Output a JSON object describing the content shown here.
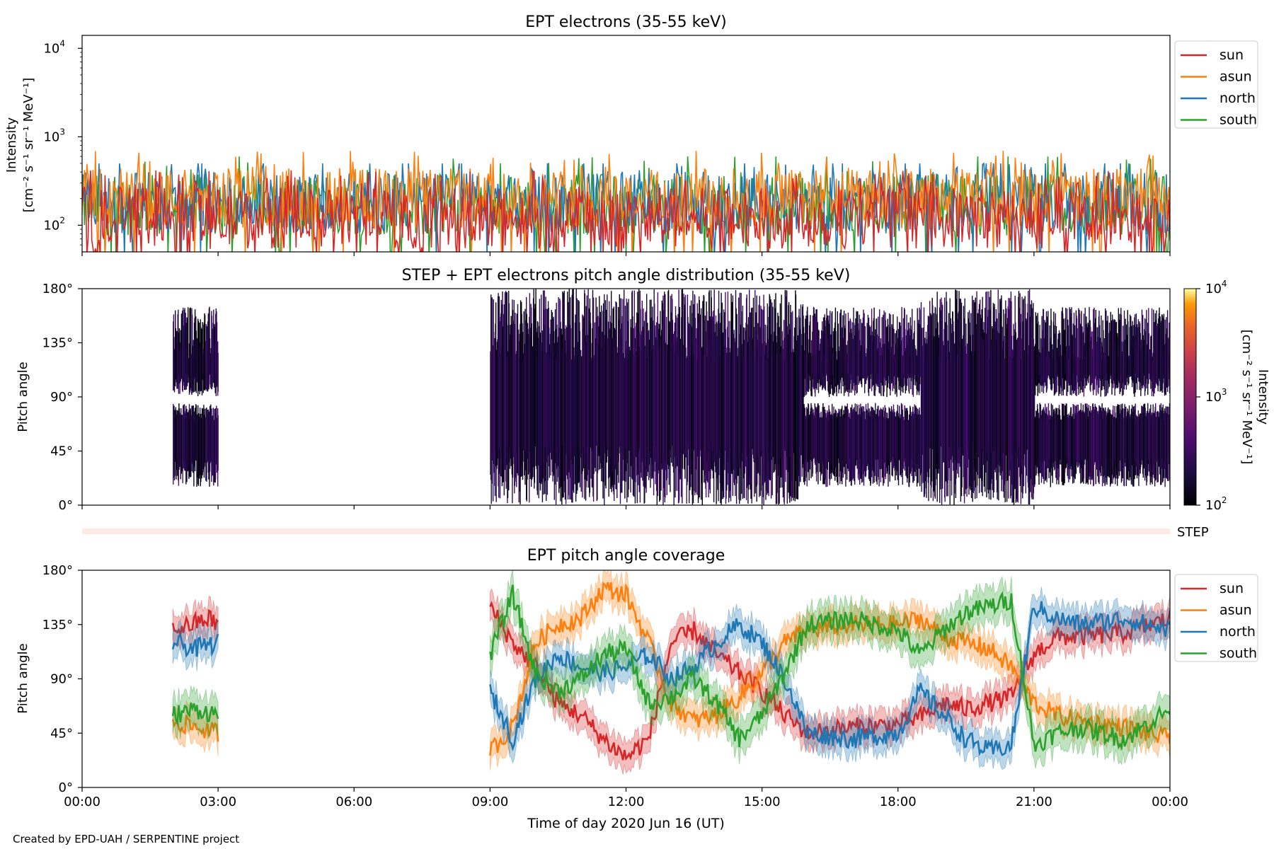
{
  "footer": "Created by EPD-UAH / SERPENTINE project",
  "xaxis": {
    "label": "Time of day 2020 Jun 16 (UT)",
    "range_hours": [
      0,
      24
    ],
    "tick_hours": [
      0,
      3,
      6,
      9,
      12,
      15,
      18,
      21,
      24
    ],
    "tick_labels": [
      "00:00",
      "03:00",
      "06:00",
      "09:00",
      "12:00",
      "15:00",
      "18:00",
      "21:00",
      "00:00"
    ]
  },
  "colors": {
    "sun": "#d62728",
    "asun": "#ff7f0e",
    "north": "#1f77b4",
    "south": "#2ca02c"
  },
  "chart_data": [
    {
      "id": "intensity",
      "type": "line",
      "title": "EPT electrons (35-55 keV)",
      "ylabel_line1": "Intensity",
      "ylabel_line2": "[cm⁻² s⁻¹ sr⁻¹ MeV⁻¹]",
      "yscale": "log",
      "ylim": [
        50,
        14000
      ],
      "y_ticks": [
        {
          "value": 100,
          "base": "10",
          "exp": "2"
        },
        {
          "value": 1000,
          "base": "10",
          "exp": "3"
        },
        {
          "value": 10000,
          "base": "10",
          "exp": "4"
        }
      ],
      "legend_position": "right, outside top",
      "legend": [
        "sun",
        "asun",
        "north",
        "south"
      ],
      "series": [
        {
          "name": "sun",
          "baseline_range": [
            50,
            300
          ],
          "typical": 120,
          "note_max": 450
        },
        {
          "name": "asun",
          "baseline_range": [
            60,
            500
          ],
          "typical": 200,
          "note_max": 700
        },
        {
          "name": "north",
          "baseline_range": [
            60,
            450
          ],
          "typical": 180,
          "note_max": 500
        },
        {
          "name": "south",
          "baseline_range": [
            60,
            450
          ],
          "typical": 170,
          "note_max": 600
        }
      ],
      "data_gaps_hours": []
    },
    {
      "id": "pad",
      "type": "heatmap",
      "title": "STEP + EPT electrons pitch angle distribution (35-55 keV)",
      "ylabel": "Pitch angle",
      "ylim": [
        0,
        180
      ],
      "y_ticks": [
        0,
        45,
        90,
        135,
        180
      ],
      "y_tick_labels": [
        "0°",
        "45°",
        "90°",
        "135°",
        "180°"
      ],
      "colorbar": {
        "label_line1": "Intensity",
        "label_line2": "[cm⁻² s⁻¹ sr⁻¹ MeV⁻¹]",
        "scale": "log",
        "range": [
          100,
          10000
        ],
        "ticks": [
          {
            "value": 100,
            "base": "10",
            "exp": "2"
          },
          {
            "value": 1000,
            "base": "10",
            "exp": "3"
          },
          {
            "value": 10000,
            "base": "10",
            "exp": "4"
          }
        ],
        "colormap": "inferno"
      },
      "coverage_intervals_hours": [
        [
          2.0,
          3.0
        ],
        [
          9.0,
          24.0
        ]
      ]
    },
    {
      "id": "step",
      "type": "bar",
      "label": "STEP",
      "state": "no data"
    },
    {
      "id": "coverage",
      "type": "line",
      "title": "EPT pitch angle coverage",
      "ylabel": "Pitch angle",
      "ylim": [
        0,
        180
      ],
      "y_ticks": [
        0,
        45,
        90,
        135,
        180
      ],
      "y_tick_labels": [
        "0°",
        "45°",
        "90°",
        "135°",
        "180°"
      ],
      "legend_position": "right, outside top",
      "legend": [
        "sun",
        "asun",
        "north",
        "south"
      ],
      "coverage_intervals_hours": [
        [
          2.0,
          3.0
        ],
        [
          9.0,
          24.0
        ]
      ],
      "series": [
        {
          "name": "sun",
          "keypoints": [
            [
              2,
              130
            ],
            [
              2.8,
              140
            ],
            [
              3,
              135
            ],
            [
              9,
              150
            ],
            [
              9.5,
              120
            ],
            [
              10,
              100
            ],
            [
              10.5,
              70
            ],
            [
              11,
              60
            ],
            [
              11.5,
              40
            ],
            [
              12,
              25
            ],
            [
              12.5,
              40
            ],
            [
              13,
              120
            ],
            [
              13.5,
              130
            ],
            [
              14,
              110
            ],
            [
              14.5,
              95
            ],
            [
              15,
              80
            ],
            [
              15.5,
              60
            ],
            [
              16,
              45
            ],
            [
              17,
              50
            ],
            [
              18,
              52
            ],
            [
              18.6,
              60
            ],
            [
              19,
              70
            ],
            [
              19.5,
              65
            ],
            [
              20,
              70
            ],
            [
              20.5,
              75
            ],
            [
              21,
              110
            ],
            [
              21.5,
              125
            ],
            [
              22,
              125
            ],
            [
              23,
              128
            ],
            [
              24,
              140
            ]
          ],
          "band": 12
        },
        {
          "name": "asun",
          "keypoints": [
            [
              2,
              55
            ],
            [
              2.5,
              50
            ],
            [
              3,
              45
            ],
            [
              9,
              30
            ],
            [
              9.5,
              50
            ],
            [
              10,
              120
            ],
            [
              10.5,
              135
            ],
            [
              11,
              140
            ],
            [
              11.5,
              165
            ],
            [
              12,
              160
            ],
            [
              12.5,
              120
            ],
            [
              13,
              70
            ],
            [
              13.5,
              55
            ],
            [
              14,
              60
            ],
            [
              14.5,
              75
            ],
            [
              15,
              95
            ],
            [
              15.5,
              120
            ],
            [
              16,
              130
            ],
            [
              17,
              135
            ],
            [
              18,
              135
            ],
            [
              18.5,
              140
            ],
            [
              19,
              125
            ],
            [
              19.5,
              120
            ],
            [
              20,
              115
            ],
            [
              20.5,
              100
            ],
            [
              21,
              70
            ],
            [
              21.5,
              60
            ],
            [
              22,
              55
            ],
            [
              23,
              50
            ],
            [
              24,
              40
            ]
          ],
          "band": 12
        },
        {
          "name": "north",
          "keypoints": [
            [
              2,
              120
            ],
            [
              2.5,
              115
            ],
            [
              3,
              120
            ],
            [
              9,
              80
            ],
            [
              9.5,
              40
            ],
            [
              10,
              90
            ],
            [
              10.5,
              110
            ],
            [
              11,
              100
            ],
            [
              11.5,
              95
            ],
            [
              12,
              100
            ],
            [
              12.5,
              110
            ],
            [
              13,
              90
            ],
            [
              13.5,
              100
            ],
            [
              14,
              120
            ],
            [
              14.5,
              135
            ],
            [
              15,
              120
            ],
            [
              15.5,
              90
            ],
            [
              16,
              45
            ],
            [
              17,
              40
            ],
            [
              18,
              45
            ],
            [
              18.5,
              80
            ],
            [
              19,
              60
            ],
            [
              19.5,
              40
            ],
            [
              20,
              30
            ],
            [
              20.5,
              35
            ],
            [
              21,
              150
            ],
            [
              21.5,
              140
            ],
            [
              22,
              135
            ],
            [
              23,
              140
            ],
            [
              24,
              130
            ]
          ],
          "band": 12
        },
        {
          "name": "south",
          "keypoints": [
            [
              2,
              60
            ],
            [
              2.5,
              65
            ],
            [
              3,
              60
            ],
            [
              9,
              110
            ],
            [
              9.5,
              160
            ],
            [
              10,
              95
            ],
            [
              10.5,
              80
            ],
            [
              11,
              90
            ],
            [
              11.5,
              110
            ],
            [
              12,
              115
            ],
            [
              12.5,
              70
            ],
            [
              13,
              75
            ],
            [
              13.5,
              90
            ],
            [
              14,
              70
            ],
            [
              14.5,
              40
            ],
            [
              15,
              60
            ],
            [
              15.5,
              95
            ],
            [
              16,
              135
            ],
            [
              17,
              140
            ],
            [
              18,
              130
            ],
            [
              18.5,
              110
            ],
            [
              19,
              130
            ],
            [
              19.5,
              145
            ],
            [
              20,
              150
            ],
            [
              20.5,
              155
            ],
            [
              21,
              35
            ],
            [
              21.5,
              45
            ],
            [
              22,
              50
            ],
            [
              23,
              40
            ],
            [
              24,
              65
            ]
          ],
          "band": 14
        }
      ]
    }
  ]
}
